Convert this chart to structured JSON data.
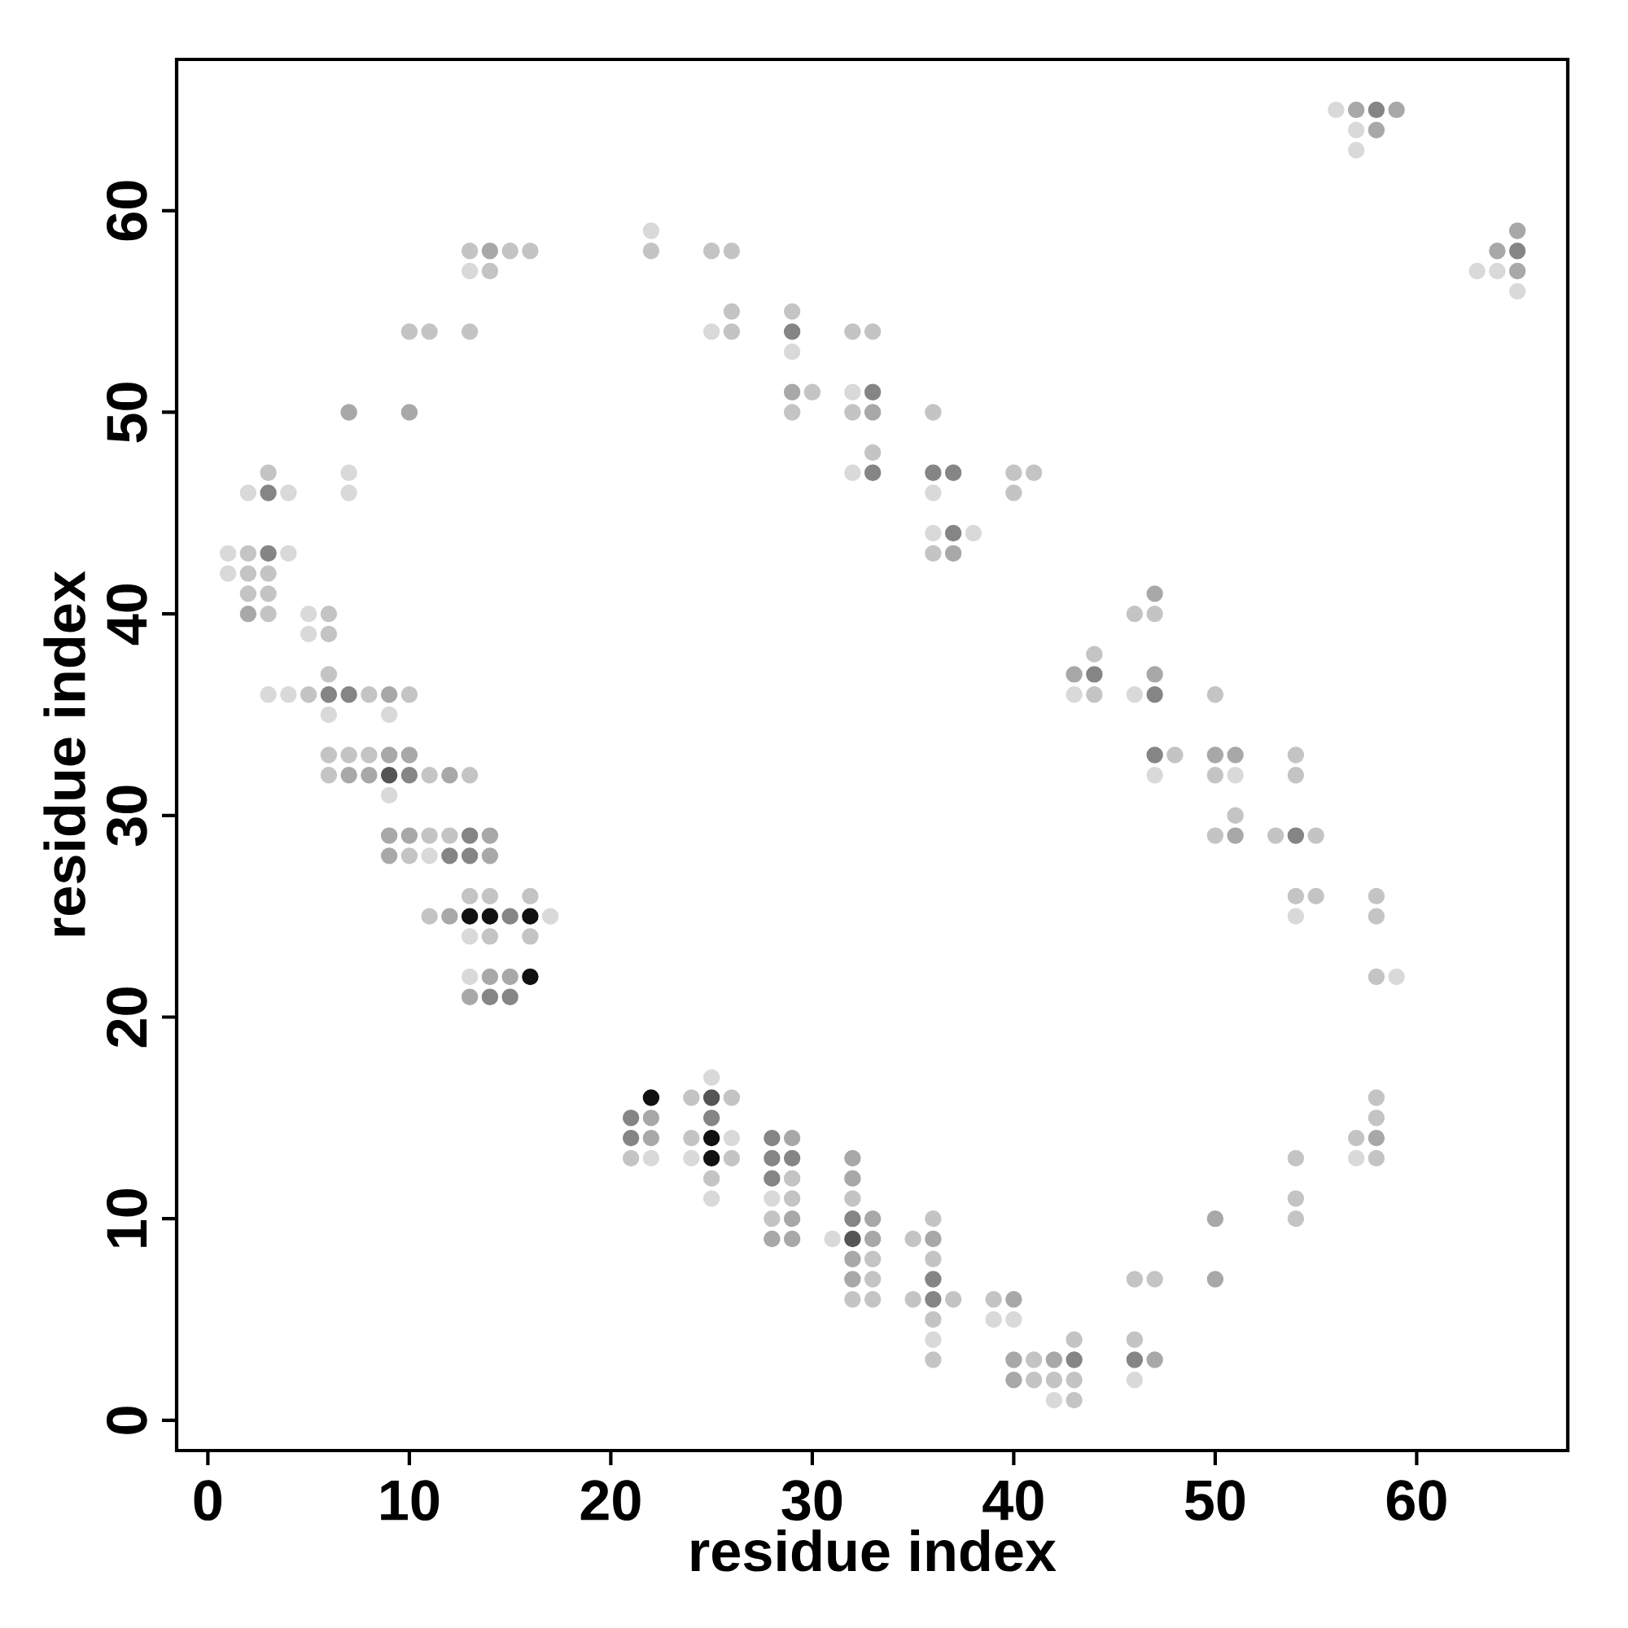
{
  "chart_data": {
    "type": "scatter",
    "xlabel": "residue index",
    "ylabel": "residue index",
    "marker": "circle",
    "xlim": [
      -1.55,
      67.5
    ],
    "ylim": [
      -1.5,
      67.5
    ],
    "xticks": [
      0,
      10,
      20,
      30,
      40,
      50,
      60
    ],
    "yticks": [
      0,
      10,
      20,
      30,
      40,
      50,
      60
    ],
    "series": [
      {
        "color": "#d9d9d9",
        "x": [
          1,
          1,
          2,
          3,
          4,
          4,
          4,
          5,
          5,
          6,
          7,
          7,
          9,
          9,
          11,
          13,
          13,
          13,
          17,
          22,
          22,
          24,
          25,
          25,
          25,
          26,
          28,
          29,
          31,
          32,
          32,
          36,
          36,
          36,
          38,
          39,
          40,
          42,
          43,
          46,
          46,
          47,
          51,
          54,
          56,
          57,
          57,
          57,
          59,
          63,
          64,
          65
        ],
        "values": [
          43,
          42,
          46,
          36,
          46,
          43,
          36,
          40,
          39,
          35,
          47,
          46,
          35,
          31,
          28,
          57,
          24,
          22,
          25,
          59,
          13,
          13,
          54,
          17,
          11,
          14,
          11,
          53,
          9,
          51,
          47,
          46,
          44,
          4,
          44,
          5,
          5,
          1,
          36,
          36,
          2,
          32,
          32,
          25,
          65,
          64,
          63,
          13,
          22,
          57,
          57,
          56
        ]
      },
      {
        "color": "#c4c4c4",
        "x": [
          2,
          2,
          2,
          3,
          3,
          3,
          3,
          5,
          6,
          6,
          6,
          6,
          6,
          7,
          8,
          8,
          10,
          10,
          10,
          11,
          11,
          11,
          11,
          12,
          13,
          13,
          13,
          13,
          14,
          14,
          14,
          15,
          16,
          16,
          16,
          21,
          22,
          24,
          24,
          25,
          25,
          26,
          26,
          26,
          26,
          26,
          28,
          29,
          29,
          29,
          29,
          30,
          32,
          32,
          32,
          32,
          33,
          33,
          33,
          33,
          33,
          35,
          35,
          36,
          36,
          36,
          36,
          36,
          36,
          37,
          39,
          40,
          40,
          41,
          41,
          41,
          42,
          43,
          43,
          43,
          44,
          44,
          46,
          46,
          46,
          47,
          47,
          48,
          50,
          50,
          50,
          51,
          53,
          54,
          54,
          54,
          54,
          54,
          54,
          55,
          55,
          57,
          58,
          58,
          58,
          58,
          58,
          58
        ],
        "values": [
          43,
          42,
          41,
          47,
          42,
          41,
          40,
          36,
          40,
          39,
          37,
          33,
          32,
          33,
          36,
          33,
          54,
          36,
          28,
          54,
          32,
          29,
          25,
          29,
          58,
          54,
          32,
          26,
          57,
          26,
          24,
          58,
          58,
          26,
          24,
          13,
          58,
          16,
          14,
          58,
          12,
          58,
          55,
          54,
          16,
          13,
          10,
          55,
          50,
          12,
          11,
          51,
          54,
          50,
          11,
          6,
          54,
          48,
          8,
          7,
          6,
          9,
          6,
          50,
          43,
          10,
          8,
          5,
          3,
          6,
          6,
          47,
          46,
          47,
          3,
          2,
          2,
          4,
          2,
          1,
          38,
          36,
          40,
          7,
          4,
          40,
          7,
          33,
          36,
          32,
          29,
          30,
          29,
          33,
          32,
          26,
          13,
          11,
          10,
          29,
          26,
          14,
          26,
          25,
          22,
          16,
          15,
          13
        ]
      },
      {
        "color": "#a8a8a8",
        "x": [
          2,
          7,
          7,
          8,
          9,
          9,
          9,
          9,
          10,
          10,
          10,
          12,
          12,
          13,
          14,
          14,
          14,
          14,
          15,
          22,
          22,
          28,
          29,
          29,
          29,
          29,
          32,
          32,
          32,
          32,
          33,
          33,
          33,
          36,
          37,
          40,
          40,
          40,
          42,
          43,
          47,
          47,
          47,
          50,
          50,
          50,
          51,
          51,
          57,
          58,
          58,
          59,
          64,
          65,
          65
        ],
        "values": [
          40,
          50,
          32,
          32,
          36,
          33,
          29,
          28,
          50,
          33,
          29,
          32,
          25,
          21,
          58,
          29,
          28,
          22,
          22,
          15,
          14,
          9,
          51,
          14,
          10,
          9,
          13,
          12,
          8,
          7,
          50,
          10,
          9,
          9,
          43,
          6,
          3,
          2,
          3,
          37,
          41,
          37,
          3,
          33,
          10,
          7,
          33,
          29,
          65,
          64,
          14,
          65,
          58,
          59,
          57
        ]
      },
      {
        "color": "#858585",
        "x": [
          3,
          3,
          6,
          7,
          10,
          12,
          13,
          13,
          14,
          15,
          15,
          21,
          21,
          25,
          28,
          28,
          28,
          29,
          29,
          32,
          33,
          33,
          36,
          36,
          36,
          37,
          37,
          43,
          44,
          46,
          47,
          47,
          54,
          58,
          65
        ],
        "values": [
          46,
          43,
          36,
          36,
          32,
          28,
          29,
          28,
          21,
          25,
          21,
          15,
          14,
          15,
          14,
          13,
          12,
          54,
          13,
          10,
          51,
          47,
          47,
          7,
          6,
          47,
          44,
          3,
          37,
          3,
          36,
          33,
          29,
          65,
          58
        ]
      },
      {
        "color": "#555555",
        "x": [
          9,
          25,
          32
        ],
        "values": [
          32,
          16,
          9
        ]
      },
      {
        "color": "#111111",
        "x": [
          13,
          14,
          16,
          16,
          22,
          25,
          25
        ],
        "values": [
          25,
          25,
          25,
          22,
          16,
          14,
          13
        ]
      }
    ]
  }
}
